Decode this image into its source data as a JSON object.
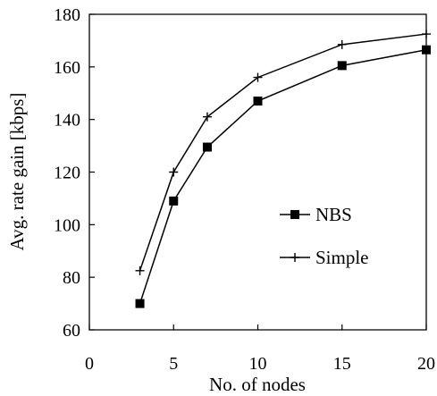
{
  "chart_data": {
    "type": "line",
    "title": "",
    "xlabel": "No. of nodes",
    "ylabel": "Avg. rate gain [kbps]",
    "xlim": [
      0,
      20
    ],
    "ylim": [
      60,
      180
    ],
    "xticks": [
      0,
      5,
      10,
      15,
      20
    ],
    "yticks": [
      60,
      80,
      100,
      120,
      140,
      160,
      180
    ],
    "grid": false,
    "legend_position": "right-center",
    "series": [
      {
        "name": "NBS",
        "marker": "square",
        "color": "#000000",
        "x": [
          3,
          5,
          7,
          10,
          15,
          20
        ],
        "y": [
          70,
          109,
          129.5,
          147,
          160.5,
          166.5
        ]
      },
      {
        "name": "Simple",
        "marker": "plus",
        "color": "#000000",
        "x": [
          3,
          5,
          7,
          10,
          15,
          20
        ],
        "y": [
          82.5,
          120,
          141,
          156,
          168.5,
          172.5
        ]
      }
    ]
  }
}
